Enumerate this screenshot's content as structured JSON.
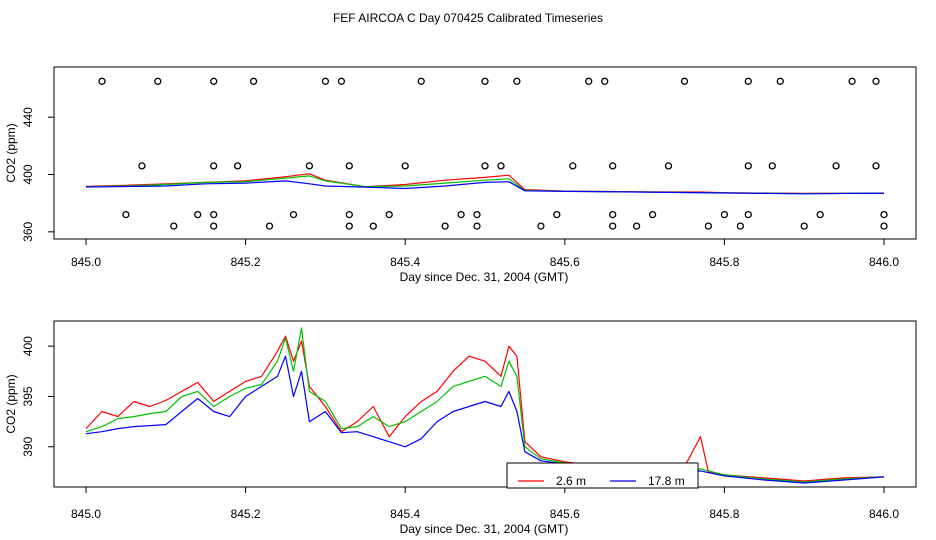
{
  "figure_title": "FEF AIRCOA C  Day 070425  Calibrated Timeseries",
  "chart_data": [
    {
      "type": "line",
      "title": "",
      "xlabel": "Day since Dec. 31, 2004 (GMT)",
      "ylabel": "CO2 (ppm)",
      "xlim": [
        845.0,
        846.0
      ],
      "ylim": [
        355,
        475
      ],
      "xticks": [
        845.0,
        845.2,
        845.4,
        845.6,
        845.8,
        846.0
      ],
      "xtick_labels": [
        "845.0",
        "845.2",
        "845.4",
        "845.6",
        "845.8",
        "846.0"
      ],
      "yticks": [
        360,
        400,
        440
      ],
      "ytick_labels": [
        "360",
        "400",
        "440"
      ],
      "series": [
        {
          "name": "2.6 m",
          "color": "#ff0000",
          "x": [
            845.0,
            845.05,
            845.1,
            845.15,
            845.2,
            845.25,
            845.28,
            845.3,
            845.35,
            845.4,
            845.45,
            845.5,
            845.53,
            845.55,
            845.6,
            845.7,
            845.77,
            845.8,
            845.9,
            846.0
          ],
          "y": [
            391.8,
            392.5,
            393.5,
            394.5,
            395.5,
            398.5,
            400.5,
            396.0,
            391.5,
            393.0,
            396.0,
            398.0,
            399.5,
            389.5,
            388.4,
            387.9,
            387.8,
            387.3,
            386.8,
            387.0
          ]
        },
        {
          "name": "",
          "color": "#00c000",
          "x": [
            845.0,
            845.05,
            845.1,
            845.15,
            845.2,
            845.25,
            845.28,
            845.3,
            845.35,
            845.4,
            845.45,
            845.5,
            845.53,
            845.55,
            845.6,
            845.7,
            845.8,
            845.9,
            846.0
          ],
          "y": [
            391.5,
            392.0,
            393.0,
            394.5,
            395.0,
            397.5,
            399.0,
            395.5,
            391.5,
            392.0,
            394.0,
            396.0,
            397.0,
            389.0,
            388.3,
            387.8,
            387.2,
            386.7,
            387.0
          ]
        },
        {
          "name": "17.8 m",
          "color": "#0000ff",
          "x": [
            845.0,
            845.05,
            845.1,
            845.15,
            845.2,
            845.25,
            845.28,
            845.3,
            845.35,
            845.4,
            845.45,
            845.5,
            845.53,
            845.55,
            845.6,
            845.7,
            845.8,
            845.9,
            846.0
          ],
          "y": [
            391.3,
            391.6,
            392.0,
            393.5,
            394.0,
            395.5,
            393.5,
            392.0,
            391.2,
            390.2,
            392.0,
            394.5,
            395.0,
            388.6,
            388.2,
            387.7,
            387.1,
            386.5,
            387.0
          ]
        }
      ],
      "scatter_points": [
        {
          "name": "cal-points",
          "marker": "open-circle",
          "x": [
            845.02,
            845.09,
            845.16,
            845.21,
            845.3,
            845.32,
            845.42,
            845.5,
            845.54,
            845.63,
            845.65,
            845.75,
            845.83,
            845.87,
            845.96,
            845.99,
            845.07,
            845.16,
            845.19,
            845.28,
            845.33,
            845.4,
            845.5,
            845.52,
            845.61,
            845.66,
            845.73,
            845.83,
            845.86,
            845.94,
            845.99,
            845.05,
            845.14,
            845.16,
            845.26,
            845.33,
            845.38,
            845.47,
            845.49,
            845.59,
            845.66,
            845.71,
            845.8,
            845.83,
            845.92,
            846.0,
            845.11,
            845.16,
            845.23,
            845.33,
            845.36,
            845.45,
            845.49,
            845.57,
            845.66,
            845.69,
            845.78,
            845.82,
            845.9,
            846.0
          ],
          "y": [
            465,
            465,
            465,
            465,
            465,
            465,
            465,
            465,
            465,
            465,
            465,
            465,
            465,
            465,
            465,
            465,
            406,
            406,
            406,
            406,
            406,
            406,
            406,
            406,
            406,
            406,
            406,
            406,
            406,
            406,
            406,
            372,
            372,
            372,
            372,
            372,
            372,
            372,
            372,
            372,
            372,
            372,
            372,
            372,
            372,
            372,
            364,
            364,
            364,
            364,
            364,
            364,
            364,
            364,
            364,
            364,
            364,
            364,
            364,
            364
          ]
        }
      ]
    },
    {
      "type": "line",
      "title": "",
      "xlabel": "Day since Dec. 31, 2004 (GMT)",
      "ylabel": "CO2 (ppm)",
      "xlim": [
        845.0,
        846.0
      ],
      "ylim": [
        386,
        402.5
      ],
      "xticks": [
        845.0,
        845.2,
        845.4,
        845.6,
        845.8,
        846.0
      ],
      "xtick_labels": [
        "845.0",
        "845.2",
        "845.4",
        "845.6",
        "845.8",
        "846.0"
      ],
      "yticks": [
        390,
        395,
        400
      ],
      "ytick_labels": [
        "390",
        "395",
        "400"
      ],
      "legend": {
        "position": "bottom-center",
        "entries": [
          "2.6 m",
          "17.8 m"
        ]
      },
      "series": [
        {
          "name": "2.6 m",
          "color": "#ff0000",
          "x": [
            845.0,
            845.02,
            845.04,
            845.06,
            845.08,
            845.1,
            845.12,
            845.14,
            845.16,
            845.18,
            845.2,
            845.22,
            845.24,
            845.25,
            845.26,
            845.27,
            845.28,
            845.3,
            845.32,
            845.34,
            845.36,
            845.38,
            845.4,
            845.42,
            845.44,
            845.46,
            845.48,
            845.5,
            845.52,
            845.53,
            845.54,
            845.55,
            845.57,
            845.6,
            845.65,
            845.7,
            845.75,
            845.77,
            845.78,
            845.8,
            845.85,
            845.9,
            845.95,
            846.0
          ],
          "y": [
            391.8,
            393.5,
            393.0,
            394.5,
            394.0,
            394.6,
            395.5,
            396.4,
            394.5,
            395.5,
            396.5,
            397.0,
            399.5,
            401.0,
            398.5,
            400.5,
            396.0,
            394.0,
            391.5,
            392.5,
            394.0,
            391.0,
            393.0,
            394.5,
            395.5,
            397.5,
            399.0,
            398.5,
            397.0,
            400.0,
            399.0,
            390.5,
            389.0,
            388.5,
            388.0,
            387.8,
            388.0,
            391.0,
            387.5,
            387.2,
            386.9,
            386.6,
            386.9,
            387.0
          ]
        },
        {
          "name": "",
          "color": "#00c000",
          "x": [
            845.0,
            845.02,
            845.04,
            845.06,
            845.08,
            845.1,
            845.12,
            845.14,
            845.16,
            845.18,
            845.2,
            845.22,
            845.24,
            845.25,
            845.26,
            845.27,
            845.28,
            845.3,
            845.32,
            845.34,
            845.36,
            845.38,
            845.4,
            845.42,
            845.44,
            845.46,
            845.48,
            845.5,
            845.52,
            845.53,
            845.54,
            845.55,
            845.57,
            845.6,
            845.65,
            845.7,
            845.75,
            845.77,
            845.8,
            845.85,
            845.9,
            845.95,
            846.0
          ],
          "y": [
            391.5,
            392.0,
            392.8,
            393.0,
            393.3,
            393.5,
            395.0,
            395.5,
            394.0,
            395.0,
            395.8,
            396.2,
            398.5,
            400.8,
            397.5,
            401.8,
            395.5,
            394.5,
            391.8,
            392.0,
            393.0,
            392.0,
            392.5,
            393.5,
            394.5,
            396.0,
            396.5,
            397.0,
            396.0,
            398.5,
            397.0,
            390.0,
            388.8,
            388.4,
            387.9,
            387.7,
            387.6,
            387.8,
            387.2,
            386.8,
            386.5,
            386.8,
            387.0
          ]
        },
        {
          "name": "17.8 m",
          "color": "#0000ff",
          "x": [
            845.0,
            845.02,
            845.04,
            845.06,
            845.08,
            845.1,
            845.12,
            845.14,
            845.16,
            845.18,
            845.2,
            845.22,
            845.24,
            845.25,
            845.26,
            845.27,
            845.28,
            845.3,
            845.32,
            845.34,
            845.36,
            845.38,
            845.4,
            845.42,
            845.44,
            845.46,
            845.48,
            845.5,
            845.52,
            845.53,
            845.54,
            845.55,
            845.57,
            845.6,
            845.65,
            845.7,
            845.75,
            845.77,
            845.8,
            845.85,
            845.9,
            845.95,
            846.0
          ],
          "y": [
            391.3,
            391.5,
            391.8,
            392.0,
            392.1,
            392.2,
            393.5,
            394.8,
            393.5,
            393.0,
            395.0,
            396.0,
            397.0,
            399.0,
            395.0,
            397.5,
            392.5,
            393.5,
            391.4,
            391.5,
            391.0,
            390.5,
            390.0,
            390.8,
            392.5,
            393.5,
            394.0,
            394.5,
            394.0,
            395.5,
            393.5,
            389.5,
            388.6,
            388.3,
            387.8,
            387.6,
            387.5,
            387.6,
            387.1,
            386.7,
            386.4,
            386.7,
            387.0
          ]
        }
      ]
    }
  ]
}
